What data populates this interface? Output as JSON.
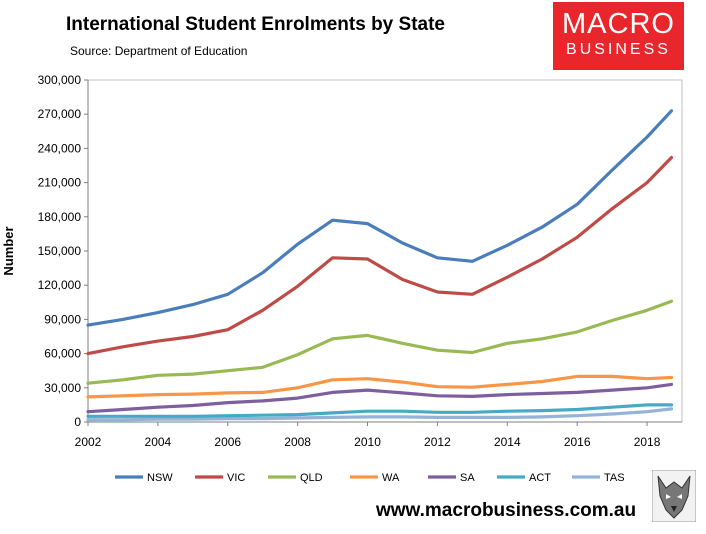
{
  "header": {
    "title": "International Student Enrolments by State",
    "source": "Source: Department of Education"
  },
  "logo": {
    "line1": "MACRO",
    "line2": "BUSINESS"
  },
  "footer": {
    "site": "www.macrobusiness.com.au"
  },
  "chart_data": {
    "type": "line",
    "title": "International Student Enrolments by State",
    "xlabel": "",
    "ylabel": "Number",
    "xlim": [
      2002,
      2019
    ],
    "ylim": [
      0,
      300000
    ],
    "xticks": [
      2002,
      2004,
      2006,
      2008,
      2010,
      2012,
      2014,
      2016,
      2018
    ],
    "xtick_labels": [
      "2002",
      "2004",
      "2006",
      "2008",
      "2010",
      "2012",
      "2014",
      "2016",
      "2018"
    ],
    "yticks": [
      0,
      30000,
      60000,
      90000,
      120000,
      150000,
      180000,
      210000,
      240000,
      270000,
      300000
    ],
    "ytick_labels": [
      "0",
      "30,000",
      "60,000",
      "90,000",
      "120,000",
      "150,000",
      "180,000",
      "210,000",
      "240,000",
      "270,000",
      "300,000"
    ],
    "legend_position": "bottom",
    "x": [
      2002,
      2003,
      2004,
      2005,
      2006,
      2007,
      2008,
      2009,
      2010,
      2011,
      2012,
      2013,
      2014,
      2015,
      2016,
      2017,
      2018,
      2018.7
    ],
    "series": [
      {
        "name": "NSW",
        "color": "#4a7ebb",
        "values": [
          85000,
          90000,
          96000,
          103000,
          112000,
          131000,
          156000,
          177000,
          174000,
          157000,
          144000,
          141000,
          155000,
          171000,
          191000,
          221000,
          250000,
          273000
        ]
      },
      {
        "name": "VIC",
        "color": "#be4b48",
        "values": [
          60000,
          66000,
          71000,
          75000,
          81000,
          98000,
          119000,
          144000,
          143000,
          125000,
          114000,
          112000,
          127000,
          143000,
          162000,
          187000,
          210000,
          232000
        ]
      },
      {
        "name": "QLD",
        "color": "#98b954",
        "values": [
          34000,
          37000,
          41000,
          42000,
          45000,
          48000,
          59000,
          73000,
          76000,
          69000,
          63000,
          61000,
          69000,
          73000,
          79000,
          89000,
          98000,
          106000
        ]
      },
      {
        "name": "WA",
        "color": "#f79646",
        "values": [
          22000,
          23000,
          24000,
          24500,
          25500,
          26000,
          30000,
          37000,
          38000,
          35000,
          31000,
          30500,
          33000,
          35500,
          40000,
          40000,
          38000,
          39000
        ]
      },
      {
        "name": "SA",
        "color": "#7d5fa0",
        "values": [
          9000,
          11000,
          13000,
          14500,
          17000,
          18500,
          21000,
          26000,
          28000,
          25500,
          23000,
          22500,
          24000,
          25000,
          26000,
          28000,
          30000,
          33000
        ]
      },
      {
        "name": "ACT",
        "color": "#46aac5",
        "values": [
          5000,
          5000,
          5000,
          5000,
          5500,
          6000,
          6500,
          8000,
          9500,
          9500,
          8500,
          8500,
          9500,
          10000,
          11000,
          13000,
          15000,
          15000
        ]
      },
      {
        "name": "TAS",
        "color": "#95b3d7",
        "values": [
          2000,
          2000,
          2500,
          2500,
          3000,
          3000,
          3500,
          4000,
          4500,
          4500,
          4000,
          4000,
          4000,
          4500,
          5500,
          7000,
          9000,
          11500
        ]
      }
    ]
  }
}
